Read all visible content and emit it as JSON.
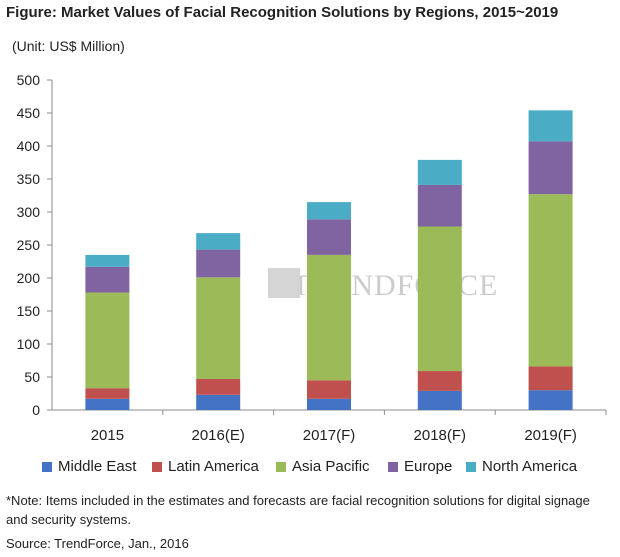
{
  "title": "Figure: Market Values of Facial Recognition Solutions by Regions, 2015~2019",
  "unit": "(Unit: US$ Million)",
  "watermark": "TRENDFORCE",
  "note": "*Note: Items included in the estimates and forecasts are facial recognition solutions for digital signage and security systems.",
  "source": "Source: TrendForce, Jan., 2016",
  "chart_data": {
    "type": "bar",
    "stacked": true,
    "categories": [
      "2015",
      "2016(E)",
      "2017(F)",
      "2018(F)",
      "2019(F)"
    ],
    "ylim": [
      0,
      500
    ],
    "yticks": [
      0,
      50,
      100,
      150,
      200,
      250,
      300,
      350,
      400,
      450,
      500
    ],
    "grid": false,
    "legend_position": "bottom",
    "series": [
      {
        "name": "Middle East",
        "color": "#4472C4",
        "values": [
          17,
          23,
          17,
          29,
          30
        ]
      },
      {
        "name": "Latin America",
        "color": "#C0504D",
        "values": [
          16,
          24,
          28,
          30,
          36
        ]
      },
      {
        "name": "Asia Pacific",
        "color": "#9BBB59",
        "values": [
          145,
          154,
          190,
          219,
          261
        ]
      },
      {
        "name": "Europe",
        "color": "#8064A2",
        "values": [
          39,
          42,
          54,
          63,
          80
        ]
      },
      {
        "name": "North America",
        "color": "#4BACC6",
        "values": [
          18,
          25,
          26,
          38,
          47
        ]
      }
    ]
  }
}
